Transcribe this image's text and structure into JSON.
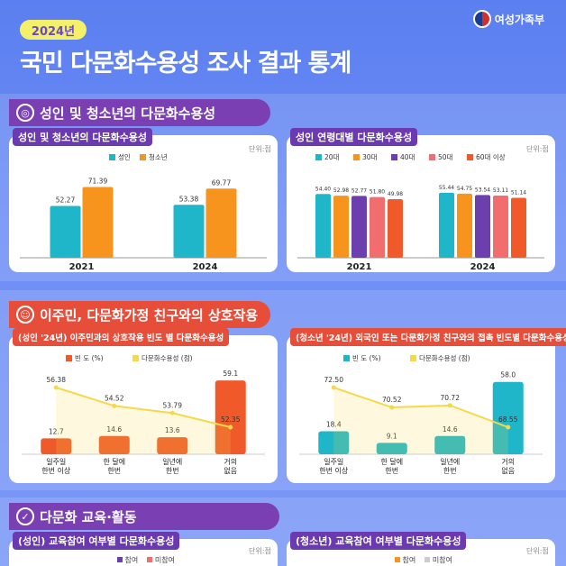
{
  "header": {
    "year_badge": "2024년",
    "title": "국민 다문화수용성 조사 결과 통계",
    "ministry": "여성가족부"
  },
  "section1": {
    "title": "성인 및 청소년의 다문화수용성",
    "left_label": "성인 및 청소년의 다문화수용성",
    "right_label": "성인 연령대별 다문화수용성",
    "unit": "단위:점"
  },
  "section2": {
    "title": "이주민, 다문화가정 친구와의 상호작용",
    "left_label": "(성인 '24년) 이주민과의 상호작용 빈도 별 다문화수용성",
    "right_label": "(청소년 '24년) 외국인 또는 다문화가정 친구와의 접촉 빈도별 다문화수용성"
  },
  "section3": {
    "title": "다문화 교육·활동",
    "left_label": "(성인) 교육참여 여부별 다문화수용성",
    "right_label": "(청소년) 교육참여 여부별 다문화수용성",
    "unit": "단위:점",
    "legend_left": [
      "참여",
      "미참여"
    ],
    "legend_right": [
      "참여",
      "미참여"
    ]
  },
  "chart_data": [
    {
      "type": "bar",
      "categories": [
        "2021",
        "2024"
      ],
      "series": [
        {
          "name": "성인",
          "values": [
            52.27,
            53.38
          ],
          "color": "#1fb6c9"
        },
        {
          "name": "청소년",
          "values": [
            71.39,
            69.77
          ],
          "color": "#f7941d"
        }
      ],
      "ylim": [
        0,
        80
      ]
    },
    {
      "type": "bar",
      "categories": [
        "2021",
        "2024"
      ],
      "series": [
        {
          "name": "20대",
          "values": [
            54.4,
            55.44
          ],
          "color": "#1fb6c9"
        },
        {
          "name": "30대",
          "values": [
            52.98,
            54.75
          ],
          "color": "#f7941d"
        },
        {
          "name": "40대",
          "values": [
            52.77,
            53.54
          ],
          "color": "#6d3fae"
        },
        {
          "name": "50대",
          "values": [
            51.8,
            53.11
          ],
          "color": "#f26d6d"
        },
        {
          "name": "60대 이상",
          "values": [
            49.98,
            51.14
          ],
          "color": "#f05a2a"
        }
      ],
      "ylim": [
        0,
        60
      ]
    },
    {
      "type": "bar",
      "categories": [
        "일주일\n한번 이상",
        "한 달에\n한번",
        "일년에\n한번",
        "거의\n없음"
      ],
      "series": [
        {
          "name": "빈 도 (%)",
          "values": [
            12.7,
            14.6,
            13.6,
            59.1
          ],
          "color": "#f05a2a"
        },
        {
          "name": "다문화수용성 (점)",
          "values": [
            56.38,
            54.52,
            53.79,
            52.35
          ],
          "color": "#f5d94a"
        }
      ]
    },
    {
      "type": "bar",
      "categories": [
        "일주일\n한번 이상",
        "한 달에\n한번",
        "일년에\n한번",
        "거의\n없음"
      ],
      "series": [
        {
          "name": "빈 도 (%)",
          "values": [
            18.4,
            9.1,
            14.6,
            58.0
          ],
          "color": "#1fb6c9"
        },
        {
          "name": "다문화수용성 (점)",
          "values": [
            72.5,
            70.52,
            70.72,
            68.55
          ],
          "color": "#f5d94a"
        }
      ]
    }
  ]
}
